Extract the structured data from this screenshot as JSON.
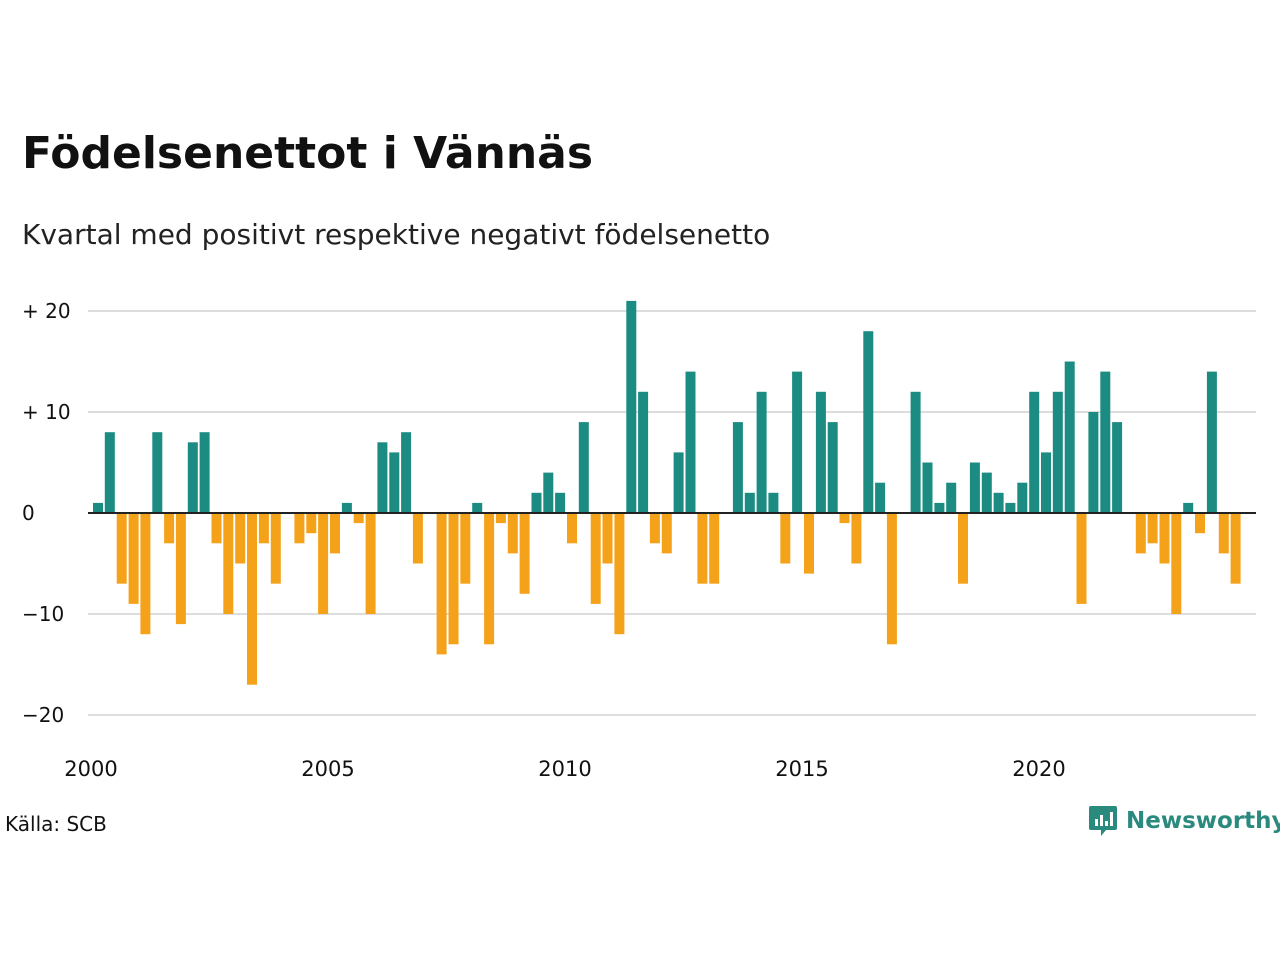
{
  "title": "Födelsenettot i Vännäs",
  "subtitle": "Kvartal med positivt respektive negativt födelsenetto",
  "source": "Källa: SCB",
  "brand": {
    "name": "Newsworthy",
    "color": "#2a8a7e"
  },
  "colors": {
    "positive": "#1c8c83",
    "negative": "#f5a21b",
    "grid": "#dddddd",
    "zero": "#222222"
  },
  "chart_data": {
    "type": "bar",
    "title": "Födelsenettot i Vännäs",
    "xlabel": "",
    "ylabel": "",
    "ylim": [
      -22,
      21
    ],
    "yticks": [
      {
        "value": 20,
        "label": "+ 20"
      },
      {
        "value": 10,
        "label": "+ 10"
      },
      {
        "value": 0,
        "label": "0"
      },
      {
        "value": -10,
        "label": "−10"
      },
      {
        "value": -20,
        "label": "−20"
      }
    ],
    "xticks": [
      "2000",
      "2005",
      "2010",
      "2015",
      "2020"
    ],
    "start_year": 2000,
    "grid": true,
    "legend": "none",
    "values": [
      1,
      8,
      -7,
      -9,
      -12,
      8,
      -3,
      -11,
      7,
      8,
      -3,
      -10,
      -5,
      -17,
      -3,
      -7,
      0,
      -3,
      -2,
      -10,
      -4,
      1,
      -1,
      -10,
      7,
      6,
      8,
      -5,
      0,
      -14,
      -13,
      -7,
      1,
      -13,
      -1,
      -4,
      -8,
      2,
      4,
      2,
      -3,
      9,
      -9,
      -5,
      -12,
      21,
      12,
      -3,
      -4,
      6,
      14,
      -7,
      -7,
      0,
      9,
      2,
      12,
      2,
      -5,
      14,
      -6,
      12,
      9,
      -1,
      -5,
      18,
      3,
      -13,
      0,
      12,
      5,
      1,
      3,
      -7,
      5,
      4,
      2,
      1,
      3,
      12,
      6,
      12,
      15,
      -9,
      10,
      14,
      9,
      0,
      -4,
      -3,
      -5,
      -10,
      1,
      -2,
      14,
      -4,
      -7
    ]
  }
}
